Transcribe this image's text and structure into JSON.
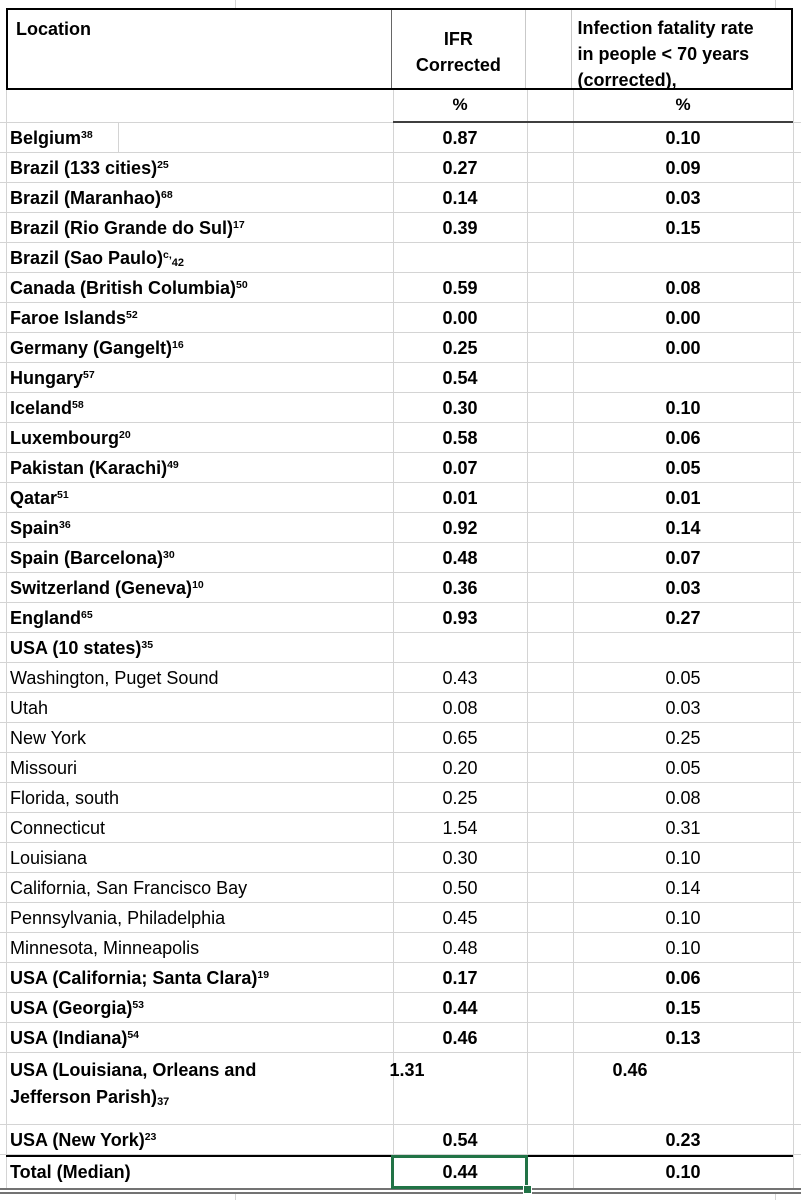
{
  "colors": {
    "selection_green": "#217346",
    "header_border": "#000000",
    "gridline": "#d4d4d4",
    "medium_border": "#3f3f3f",
    "double_border": "#737373"
  },
  "table": {
    "header": {
      "location": "Location",
      "ifr": "IFR Corrected",
      "ifr_under70": "Infection fatality rate in people < 70 years (corrected),",
      "unit_ifr": "%",
      "unit_ifr_under70": "%"
    },
    "rows": [
      {
        "name": "Belgium",
        "sup": "38",
        "ifr": "0.87",
        "ifr70": "0.10",
        "bold": true
      },
      {
        "name": "Brazil (133 cities)",
        "sup": "25",
        "ifr": "0.27",
        "ifr70": "0.09",
        "bold": true
      },
      {
        "name": "Brazil (Maranhao)",
        "sup": "68",
        "ifr": "0.14",
        "ifr70": "0.03",
        "bold": true
      },
      {
        "name": "Brazil (Rio Grande do Sul)",
        "sup": "17",
        "ifr": "0.39",
        "ifr70": "0.15",
        "bold": true
      },
      {
        "name": "Brazil (Sao Paulo)",
        "sup": "c,",
        "sub": "42",
        "ifr": "",
        "ifr70": "",
        "bold": true
      },
      {
        "name": "Canada (British Columbia)",
        "sup": "50",
        "ifr": "0.59",
        "ifr70": "0.08",
        "bold": true
      },
      {
        "name": "Faroe Islands",
        "sup": "52",
        "ifr": "0.00",
        "ifr70": "0.00",
        "bold": true
      },
      {
        "name": "Germany (Gangelt)",
        "sup": "16",
        "ifr": "0.25",
        "ifr70": "0.00",
        "bold": true
      },
      {
        "name": "Hungary",
        "sup": "57",
        "ifr": "0.54",
        "ifr70": "",
        "bold": true
      },
      {
        "name": "Iceland",
        "sup": "58",
        "ifr": "0.30",
        "ifr70": "0.10",
        "bold": true
      },
      {
        "name": "Luxembourg",
        "sup": "20",
        "ifr": "0.58",
        "ifr70": "0.06",
        "bold": true
      },
      {
        "name": "Pakistan (Karachi)",
        "sup": "49",
        "ifr": "0.07",
        "ifr70": "0.05",
        "bold": true
      },
      {
        "name": "Qatar",
        "sup": "51",
        "ifr": "0.01",
        "ifr70": "0.01",
        "bold": true
      },
      {
        "name": "Spain",
        "sup": "36",
        "ifr": "0.92",
        "ifr70": "0.14",
        "bold": true
      },
      {
        "name": "Spain (Barcelona)",
        "sup": "30",
        "ifr": "0.48",
        "ifr70": "0.07",
        "bold": true
      },
      {
        "name": "Switzerland (Geneva)",
        "sup": "10",
        "ifr": "0.36",
        "ifr70": "0.03",
        "bold": true
      },
      {
        "name": "England",
        "sup": "65",
        "ifr": "0.93",
        "ifr70": "0.27",
        "bold": true
      },
      {
        "name": "USA (10 states)",
        "sup": "35",
        "ifr": "",
        "ifr70": "",
        "bold": true
      },
      {
        "name": "Washington, Puget Sound",
        "ifr": "0.43",
        "ifr70": "0.05",
        "bold": false
      },
      {
        "name": "Utah",
        "ifr": "0.08",
        "ifr70": "0.03",
        "bold": false
      },
      {
        "name": "New York",
        "ifr": "0.65",
        "ifr70": "0.25",
        "bold": false
      },
      {
        "name": "Missouri",
        "ifr": "0.20",
        "ifr70": "0.05",
        "bold": false
      },
      {
        "name": "Florida, south",
        "ifr": "0.25",
        "ifr70": "0.08",
        "bold": false
      },
      {
        "name": "Connecticut",
        "ifr": "1.54",
        "ifr70": "0.31",
        "bold": false
      },
      {
        "name": "Louisiana",
        "ifr": "0.30",
        "ifr70": "0.10",
        "bold": false
      },
      {
        "name": "California, San Francisco Bay",
        "ifr": "0.50",
        "ifr70": "0.14",
        "bold": false
      },
      {
        "name": "Pennsylvania, Philadelphia",
        "ifr": "0.45",
        "ifr70": "0.10",
        "bold": false
      },
      {
        "name": "Minnesota, Minneapolis",
        "ifr": "0.48",
        "ifr70": "0.10",
        "bold": false
      },
      {
        "name": "USA (California; Santa Clara)",
        "sup": "19",
        "ifr": "0.17",
        "ifr70": "0.06",
        "bold": true
      },
      {
        "name": "USA (Georgia)",
        "sup": "53",
        "ifr": "0.44",
        "ifr70": "0.15",
        "bold": true
      },
      {
        "name": "USA (Indiana)",
        "sup": "54",
        "ifr": "0.46",
        "ifr70": "0.13",
        "bold": true
      },
      {
        "name": "USA (Louisiana, Orleans and",
        "name2": "Jefferson Parish)",
        "sub": "37",
        "ifr": "1.31",
        "ifr70": "0.46",
        "bold": true,
        "twoline": true
      },
      {
        "name": "USA (New York)",
        "sup": "23",
        "ifr": "0.54",
        "ifr70": "0.23",
        "bold": true
      }
    ],
    "total": {
      "label": "Total (Median)",
      "ifr": "0.44",
      "ifr70": "0.10"
    },
    "selection": {
      "row": "Total (Median)",
      "column": "IFR Corrected",
      "value": "0.44"
    }
  }
}
